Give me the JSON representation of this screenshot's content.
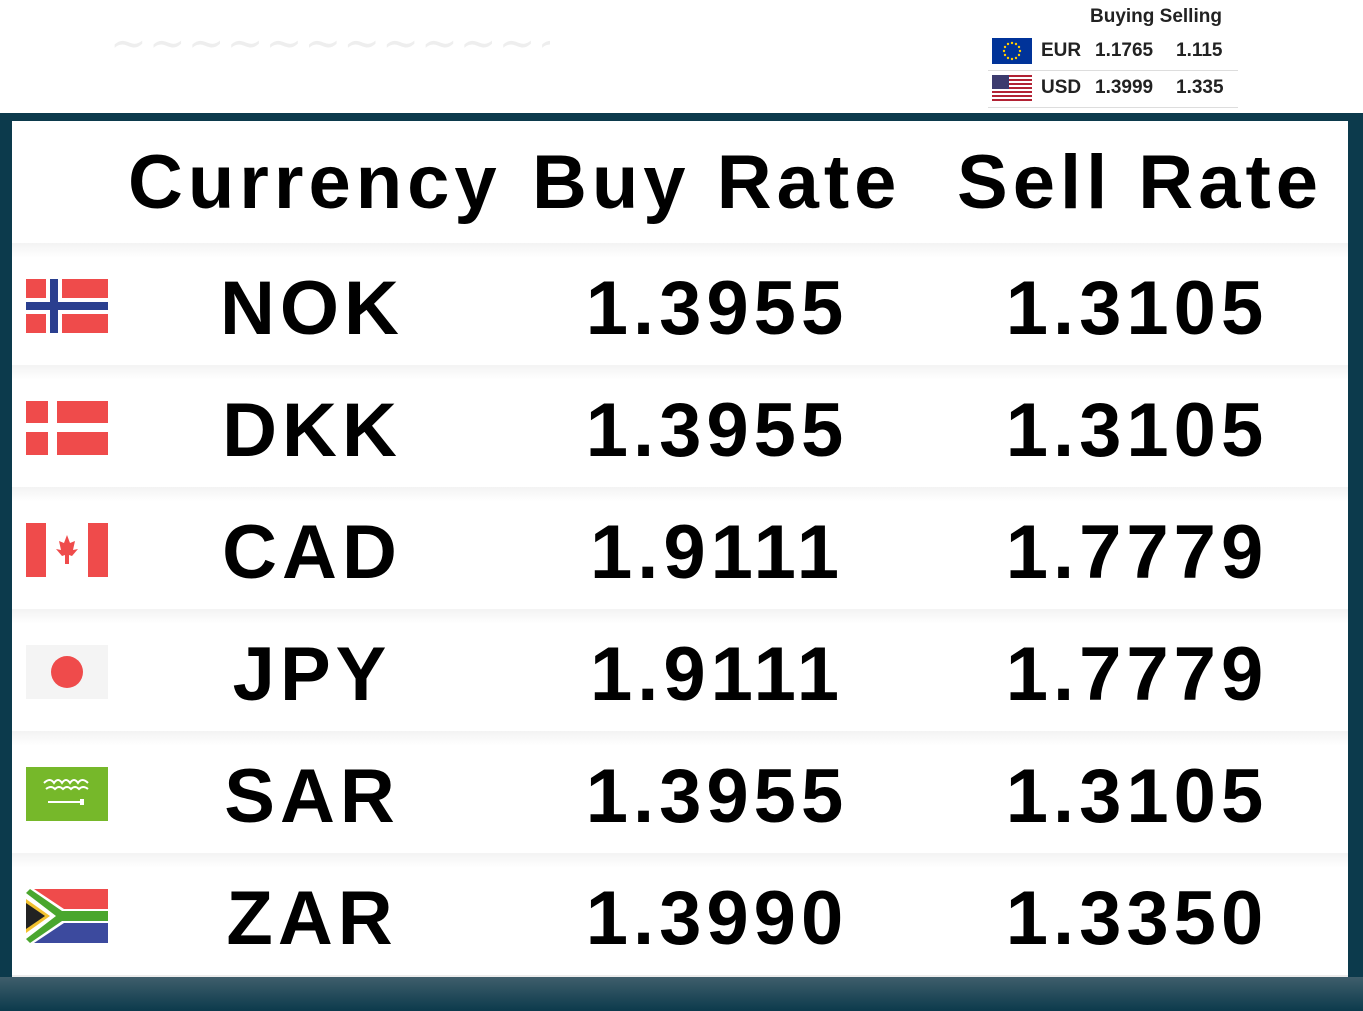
{
  "ticker": {
    "header": "Buying Selling",
    "rows": [
      {
        "code": "EUR",
        "buy": "1.1765",
        "sell": "1.115",
        "flag": "eu-flag-icon"
      },
      {
        "code": "USD",
        "buy": "1.3999",
        "sell": "1.335",
        "flag": "us-flag-icon"
      }
    ]
  },
  "table": {
    "headers": {
      "currency": "Currency",
      "buy": "Buy Rate",
      "sell": "Sell Rate"
    },
    "rows": [
      {
        "code": "NOK",
        "buy": "1.3955",
        "sell": "1.3105",
        "flag": "norway-flag-icon"
      },
      {
        "code": "DKK",
        "buy": "1.3955",
        "sell": "1.3105",
        "flag": "denmark-flag-icon"
      },
      {
        "code": "CAD",
        "buy": "1.9111",
        "sell": "1.7779",
        "flag": "canada-flag-icon"
      },
      {
        "code": "JPY",
        "buy": "1.9111",
        "sell": "1.7779",
        "flag": "japan-flag-icon"
      },
      {
        "code": "SAR",
        "buy": "1.3955",
        "sell": "1.3105",
        "flag": "saudi-arabia-flag-icon"
      },
      {
        "code": "ZAR",
        "buy": "1.3990",
        "sell": "1.3350",
        "flag": "south-africa-flag-icon"
      }
    ]
  },
  "colors": {
    "board_bg": "#0c3a4c",
    "panel_bg": "#ffffff",
    "text": "#000000"
  }
}
